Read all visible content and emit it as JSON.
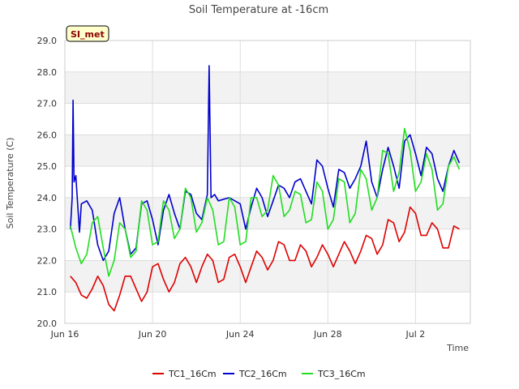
{
  "chart_data": {
    "type": "line",
    "title": "Soil Temperature at -16cm",
    "xlabel": "Time",
    "ylabel": "Soil Temperature (C)",
    "badge": "SI_met",
    "ylim": [
      20.0,
      29.0
    ],
    "yticks": [
      "20.0",
      "21.0",
      "22.0",
      "23.0",
      "24.0",
      "25.0",
      "26.0",
      "27.0",
      "28.0",
      "29.0"
    ],
    "xlim": [
      "2023-06-16",
      "2023-07-04T12:00"
    ],
    "xticks": [
      {
        "date": "2023-06-16",
        "label": "Jun 16"
      },
      {
        "date": "2023-06-20",
        "label": "Jun 20"
      },
      {
        "date": "2023-06-24",
        "label": "Jun 24"
      },
      {
        "date": "2023-06-28",
        "label": "Jun 28"
      },
      {
        "date": "2023-07-02",
        "label": "Jul 2"
      }
    ],
    "grid": true,
    "legend_position": "bottom",
    "series": [
      {
        "name": "TC1_16Cm",
        "color": "#dd0000",
        "points": [
          [
            "2023-06-16T06:00",
            21.5
          ],
          [
            "2023-06-16T12:00",
            21.3
          ],
          [
            "2023-06-16T18:00",
            20.9
          ],
          [
            "2023-06-17T00:00",
            20.8
          ],
          [
            "2023-06-17T06:00",
            21.1
          ],
          [
            "2023-06-17T12:00",
            21.5
          ],
          [
            "2023-06-17T18:00",
            21.2
          ],
          [
            "2023-06-18T00:00",
            20.6
          ],
          [
            "2023-06-18T06:00",
            20.4
          ],
          [
            "2023-06-18T12:00",
            20.9
          ],
          [
            "2023-06-18T18:00",
            21.5
          ],
          [
            "2023-06-19T00:00",
            21.5
          ],
          [
            "2023-06-19T06:00",
            21.1
          ],
          [
            "2023-06-19T12:00",
            20.7
          ],
          [
            "2023-06-19T18:00",
            21.0
          ],
          [
            "2023-06-20T00:00",
            21.8
          ],
          [
            "2023-06-20T06:00",
            21.9
          ],
          [
            "2023-06-20T12:00",
            21.4
          ],
          [
            "2023-06-20T18:00",
            21.0
          ],
          [
            "2023-06-21T00:00",
            21.3
          ],
          [
            "2023-06-21T06:00",
            21.9
          ],
          [
            "2023-06-21T12:00",
            22.1
          ],
          [
            "2023-06-21T18:00",
            21.8
          ],
          [
            "2023-06-22T00:00",
            21.3
          ],
          [
            "2023-06-22T06:00",
            21.8
          ],
          [
            "2023-06-22T12:00",
            22.2
          ],
          [
            "2023-06-22T18:00",
            22.0
          ],
          [
            "2023-06-23T00:00",
            21.3
          ],
          [
            "2023-06-23T06:00",
            21.4
          ],
          [
            "2023-06-23T12:00",
            22.1
          ],
          [
            "2023-06-23T18:00",
            22.2
          ],
          [
            "2023-06-24T00:00",
            21.8
          ],
          [
            "2023-06-24T06:00",
            21.3
          ],
          [
            "2023-06-24T12:00",
            21.8
          ],
          [
            "2023-06-24T18:00",
            22.3
          ],
          [
            "2023-06-25T00:00",
            22.1
          ],
          [
            "2023-06-25T06:00",
            21.7
          ],
          [
            "2023-06-25T12:00",
            22.0
          ],
          [
            "2023-06-25T18:00",
            22.6
          ],
          [
            "2023-06-26T00:00",
            22.5
          ],
          [
            "2023-06-26T06:00",
            22.0
          ],
          [
            "2023-06-26T12:00",
            22.0
          ],
          [
            "2023-06-26T18:00",
            22.5
          ],
          [
            "2023-06-27T00:00",
            22.3
          ],
          [
            "2023-06-27T06:00",
            21.8
          ],
          [
            "2023-06-27T12:00",
            22.1
          ],
          [
            "2023-06-27T18:00",
            22.5
          ],
          [
            "2023-06-28T00:00",
            22.2
          ],
          [
            "2023-06-28T06:00",
            21.8
          ],
          [
            "2023-06-28T12:00",
            22.2
          ],
          [
            "2023-06-28T18:00",
            22.6
          ],
          [
            "2023-06-29T00:00",
            22.3
          ],
          [
            "2023-06-29T06:00",
            21.9
          ],
          [
            "2023-06-29T12:00",
            22.3
          ],
          [
            "2023-06-29T18:00",
            22.8
          ],
          [
            "2023-06-30T00:00",
            22.7
          ],
          [
            "2023-06-30T06:00",
            22.2
          ],
          [
            "2023-06-30T12:00",
            22.5
          ],
          [
            "2023-06-30T18:00",
            23.3
          ],
          [
            "2023-07-01T00:00",
            23.2
          ],
          [
            "2023-07-01T06:00",
            22.6
          ],
          [
            "2023-07-01T12:00",
            22.9
          ],
          [
            "2023-07-01T18:00",
            23.7
          ],
          [
            "2023-07-02T00:00",
            23.5
          ],
          [
            "2023-07-02T06:00",
            22.8
          ],
          [
            "2023-07-02T12:00",
            22.8
          ],
          [
            "2023-07-02T18:00",
            23.2
          ],
          [
            "2023-07-03T00:00",
            23.0
          ],
          [
            "2023-07-03T06:00",
            22.4
          ],
          [
            "2023-07-03T12:00",
            22.4
          ],
          [
            "2023-07-03T18:00",
            23.1
          ],
          [
            "2023-07-04T00:00",
            23.0
          ]
        ]
      },
      {
        "name": "TC2_16Cm",
        "color": "#0000cc",
        "points": [
          [
            "2023-06-16T06:00",
            23.0
          ],
          [
            "2023-06-16T08:00",
            24.0
          ],
          [
            "2023-06-16T09:00",
            27.1
          ],
          [
            "2023-06-16T10:00",
            24.5
          ],
          [
            "2023-06-16T12:00",
            24.7
          ],
          [
            "2023-06-16T16:00",
            22.9
          ],
          [
            "2023-06-16T18:00",
            23.8
          ],
          [
            "2023-06-17T00:00",
            23.9
          ],
          [
            "2023-06-17T06:00",
            23.6
          ],
          [
            "2023-06-17T12:00",
            22.5
          ],
          [
            "2023-06-17T18:00",
            22.0
          ],
          [
            "2023-06-18T00:00",
            22.3
          ],
          [
            "2023-06-18T06:00",
            23.5
          ],
          [
            "2023-06-18T12:00",
            24.0
          ],
          [
            "2023-06-18T18:00",
            23.0
          ],
          [
            "2023-06-19T00:00",
            22.2
          ],
          [
            "2023-06-19T06:00",
            22.4
          ],
          [
            "2023-06-19T12:00",
            23.8
          ],
          [
            "2023-06-19T18:00",
            23.9
          ],
          [
            "2023-06-20T00:00",
            23.3
          ],
          [
            "2023-06-20T06:00",
            22.5
          ],
          [
            "2023-06-20T12:00",
            23.6
          ],
          [
            "2023-06-20T18:00",
            24.1
          ],
          [
            "2023-06-21T00:00",
            23.5
          ],
          [
            "2023-06-21T06:00",
            23.0
          ],
          [
            "2023-06-21T12:00",
            24.2
          ],
          [
            "2023-06-21T18:00",
            24.1
          ],
          [
            "2023-06-22T00:00",
            23.5
          ],
          [
            "2023-06-22T06:00",
            23.3
          ],
          [
            "2023-06-22T12:00",
            24.1
          ],
          [
            "2023-06-22T14:00",
            28.2
          ],
          [
            "2023-06-22T16:00",
            24.0
          ],
          [
            "2023-06-22T20:00",
            24.1
          ],
          [
            "2023-06-23T00:00",
            23.9
          ],
          [
            "2023-06-23T12:00",
            24.0
          ],
          [
            "2023-06-24T00:00",
            23.8
          ],
          [
            "2023-06-24T06:00",
            23.0
          ],
          [
            "2023-06-24T12:00",
            23.7
          ],
          [
            "2023-06-24T18:00",
            24.3
          ],
          [
            "2023-06-25T00:00",
            24.0
          ],
          [
            "2023-06-25T06:00",
            23.4
          ],
          [
            "2023-06-25T12:00",
            23.9
          ],
          [
            "2023-06-25T18:00",
            24.4
          ],
          [
            "2023-06-26T00:00",
            24.3
          ],
          [
            "2023-06-26T06:00",
            24.0
          ],
          [
            "2023-06-26T12:00",
            24.5
          ],
          [
            "2023-06-26T18:00",
            24.6
          ],
          [
            "2023-06-27T00:00",
            24.2
          ],
          [
            "2023-06-27T06:00",
            23.8
          ],
          [
            "2023-06-27T12:00",
            25.2
          ],
          [
            "2023-06-27T18:00",
            25.0
          ],
          [
            "2023-06-28T00:00",
            24.3
          ],
          [
            "2023-06-28T06:00",
            23.7
          ],
          [
            "2023-06-28T12:00",
            24.9
          ],
          [
            "2023-06-28T18:00",
            24.8
          ],
          [
            "2023-06-29T00:00",
            24.3
          ],
          [
            "2023-06-29T06:00",
            24.6
          ],
          [
            "2023-06-29T12:00",
            25.0
          ],
          [
            "2023-06-29T18:00",
            25.8
          ],
          [
            "2023-06-30T00:00",
            24.5
          ],
          [
            "2023-06-30T06:00",
            24.0
          ],
          [
            "2023-06-30T12:00",
            24.9
          ],
          [
            "2023-06-30T18:00",
            25.6
          ],
          [
            "2023-07-01T00:00",
            25.0
          ],
          [
            "2023-07-01T06:00",
            24.3
          ],
          [
            "2023-07-01T12:00",
            25.8
          ],
          [
            "2023-07-01T18:00",
            26.0
          ],
          [
            "2023-07-02T00:00",
            25.4
          ],
          [
            "2023-07-02T06:00",
            24.7
          ],
          [
            "2023-07-02T12:00",
            25.6
          ],
          [
            "2023-07-02T18:00",
            25.4
          ],
          [
            "2023-07-03T00:00",
            24.6
          ],
          [
            "2023-07-03T06:00",
            24.2
          ],
          [
            "2023-07-03T12:00",
            25.0
          ],
          [
            "2023-07-03T18:00",
            25.5
          ],
          [
            "2023-07-04T00:00",
            25.1
          ]
        ]
      },
      {
        "name": "TC3_16Cm",
        "color": "#22dd22",
        "points": [
          [
            "2023-06-16T06:00",
            23.1
          ],
          [
            "2023-06-16T12:00",
            22.4
          ],
          [
            "2023-06-16T18:00",
            21.9
          ],
          [
            "2023-06-17T00:00",
            22.2
          ],
          [
            "2023-06-17T06:00",
            23.2
          ],
          [
            "2023-06-17T12:00",
            23.4
          ],
          [
            "2023-06-17T18:00",
            22.4
          ],
          [
            "2023-06-18T00:00",
            21.5
          ],
          [
            "2023-06-18T06:00",
            22.0
          ],
          [
            "2023-06-18T12:00",
            23.2
          ],
          [
            "2023-06-18T18:00",
            23.0
          ],
          [
            "2023-06-19T00:00",
            22.1
          ],
          [
            "2023-06-19T06:00",
            22.3
          ],
          [
            "2023-06-19T12:00",
            23.9
          ],
          [
            "2023-06-19T18:00",
            23.6
          ],
          [
            "2023-06-20T00:00",
            22.5
          ],
          [
            "2023-06-20T06:00",
            22.6
          ],
          [
            "2023-06-20T12:00",
            23.9
          ],
          [
            "2023-06-20T18:00",
            23.6
          ],
          [
            "2023-06-21T00:00",
            22.7
          ],
          [
            "2023-06-21T06:00",
            23.0
          ],
          [
            "2023-06-21T12:00",
            24.3
          ],
          [
            "2023-06-21T18:00",
            24.0
          ],
          [
            "2023-06-22T00:00",
            22.9
          ],
          [
            "2023-06-22T06:00",
            23.2
          ],
          [
            "2023-06-22T12:00",
            24.0
          ],
          [
            "2023-06-22T18:00",
            23.6
          ],
          [
            "2023-06-23T00:00",
            22.5
          ],
          [
            "2023-06-23T06:00",
            22.6
          ],
          [
            "2023-06-23T12:00",
            24.0
          ],
          [
            "2023-06-23T18:00",
            23.7
          ],
          [
            "2023-06-24T00:00",
            22.5
          ],
          [
            "2023-06-24T06:00",
            22.6
          ],
          [
            "2023-06-24T12:00",
            24.0
          ],
          [
            "2023-06-24T18:00",
            24.0
          ],
          [
            "2023-06-25T00:00",
            23.4
          ],
          [
            "2023-06-25T06:00",
            23.6
          ],
          [
            "2023-06-25T12:00",
            24.7
          ],
          [
            "2023-06-25T18:00",
            24.4
          ],
          [
            "2023-06-26T00:00",
            23.4
          ],
          [
            "2023-06-26T06:00",
            23.6
          ],
          [
            "2023-06-26T12:00",
            24.2
          ],
          [
            "2023-06-26T18:00",
            24.1
          ],
          [
            "2023-06-27T00:00",
            23.2
          ],
          [
            "2023-06-27T06:00",
            23.3
          ],
          [
            "2023-06-27T12:00",
            24.5
          ],
          [
            "2023-06-27T18:00",
            24.2
          ],
          [
            "2023-06-28T00:00",
            23.0
          ],
          [
            "2023-06-28T06:00",
            23.3
          ],
          [
            "2023-06-28T12:00",
            24.6
          ],
          [
            "2023-06-28T18:00",
            24.5
          ],
          [
            "2023-06-29T00:00",
            23.2
          ],
          [
            "2023-06-29T06:00",
            23.5
          ],
          [
            "2023-06-29T12:00",
            24.9
          ],
          [
            "2023-06-29T18:00",
            24.6
          ],
          [
            "2023-06-30T00:00",
            23.6
          ],
          [
            "2023-06-30T06:00",
            24.0
          ],
          [
            "2023-06-30T12:00",
            25.5
          ],
          [
            "2023-06-30T18:00",
            25.4
          ],
          [
            "2023-07-01T00:00",
            24.2
          ],
          [
            "2023-07-01T06:00",
            24.8
          ],
          [
            "2023-07-01T12:00",
            26.2
          ],
          [
            "2023-07-01T18:00",
            25.5
          ],
          [
            "2023-07-02T00:00",
            24.2
          ],
          [
            "2023-07-02T06:00",
            24.5
          ],
          [
            "2023-07-02T12:00",
            25.4
          ],
          [
            "2023-07-02T18:00",
            24.9
          ],
          [
            "2023-07-03T00:00",
            23.6
          ],
          [
            "2023-07-03T06:00",
            23.8
          ],
          [
            "2023-07-03T12:00",
            25.0
          ],
          [
            "2023-07-03T18:00",
            25.3
          ],
          [
            "2023-07-04T00:00",
            24.9
          ]
        ]
      }
    ]
  }
}
